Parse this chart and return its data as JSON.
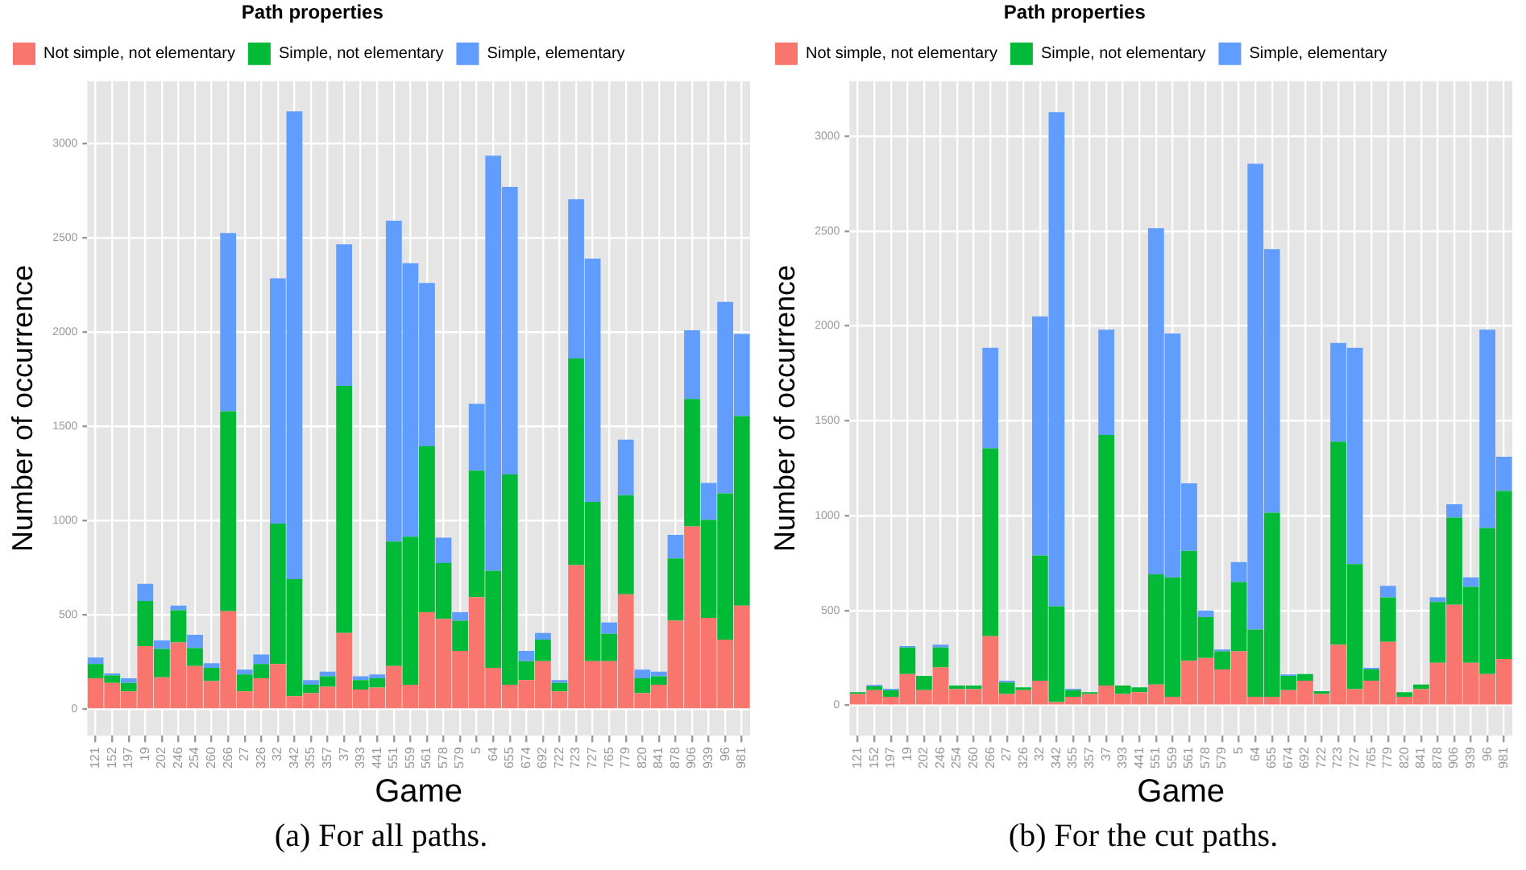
{
  "chart_data": [
    {
      "type": "bar",
      "stacked": true,
      "legend": "top",
      "legend_title": "Path properties",
      "grid": true,
      "xlabel": "Game",
      "ylabel": "Number of occurrence",
      "categories": [
        "121",
        "152",
        "197",
        "19",
        "202",
        "246",
        "254",
        "260",
        "266",
        "27",
        "326",
        "32",
        "342",
        "355",
        "357",
        "37",
        "393",
        "441",
        "551",
        "559",
        "561",
        "578",
        "579",
        "5",
        "64",
        "655",
        "674",
        "692",
        "722",
        "723",
        "727",
        "765",
        "779",
        "820",
        "841",
        "878",
        "906",
        "939",
        "96",
        "981"
      ],
      "ylim": [
        -140,
        3330
      ],
      "yticks": [
        0,
        500,
        1000,
        1500,
        2000,
        2500,
        3000
      ],
      "series": [
        {
          "name": "Not simple, not elementary",
          "color": "#f8766d",
          "values": [
            165,
            140,
            95,
            335,
            170,
            355,
            230,
            150,
            520,
            95,
            165,
            240,
            70,
            85,
            120,
            405,
            105,
            115,
            230,
            130,
            515,
            480,
            310,
            595,
            220,
            130,
            155,
            255,
            95,
            765,
            255,
            255,
            610,
            85,
            130,
            470,
            970,
            485,
            370,
            550
          ]
        },
        {
          "name": "Simple, not elementary",
          "color": "#00ba38",
          "values": [
            75,
            40,
            45,
            240,
            150,
            170,
            95,
            70,
            1060,
            90,
            75,
            745,
            620,
            45,
            55,
            1310,
            50,
            50,
            660,
            785,
            880,
            295,
            160,
            670,
            515,
            1115,
            100,
            115,
            45,
            1095,
            845,
            145,
            525,
            80,
            45,
            330,
            675,
            520,
            775,
            1005
          ]
        },
        {
          "name": "Simple, elementary",
          "color": "#619cff",
          "values": [
            35,
            10,
            25,
            90,
            45,
            25,
            70,
            25,
            945,
            25,
            50,
            1300,
            2480,
            25,
            25,
            750,
            20,
            20,
            1700,
            1450,
            865,
            135,
            45,
            355,
            2200,
            1525,
            55,
            35,
            15,
            845,
            1290,
            60,
            295,
            45,
            25,
            125,
            365,
            195,
            1015,
            435
          ]
        }
      ],
      "annotations": [
        "(a) For all paths."
      ]
    },
    {
      "type": "bar",
      "stacked": true,
      "legend": "top",
      "legend_title": "Path properties",
      "grid": true,
      "xlabel": "Game",
      "ylabel": "Number of occurrence",
      "categories": [
        "121",
        "152",
        "197",
        "19",
        "202",
        "246",
        "254",
        "260",
        "266",
        "27",
        "326",
        "32",
        "342",
        "355",
        "357",
        "37",
        "393",
        "441",
        "551",
        "559",
        "561",
        "578",
        "579",
        "5",
        "64",
        "655",
        "674",
        "692",
        "722",
        "723",
        "727",
        "765",
        "779",
        "820",
        "841",
        "878",
        "906",
        "939",
        "96",
        "981"
      ],
      "ylim": [
        -160,
        3290
      ],
      "yticks": [
        0,
        500,
        1000,
        1500,
        2000,
        2500,
        3000
      ],
      "series": [
        {
          "name": "Not simple, not elementary",
          "color": "#f8766d",
          "values": [
            60,
            80,
            45,
            165,
            80,
            200,
            85,
            85,
            365,
            60,
            80,
            130,
            17,
            45,
            60,
            105,
            60,
            70,
            110,
            45,
            235,
            250,
            190,
            285,
            45,
            45,
            80,
            130,
            60,
            320,
            85,
            130,
            335,
            45,
            85,
            225,
            530,
            225,
            165,
            245
          ]
        },
        {
          "name": "Simple, not elementary",
          "color": "#00ba38",
          "values": [
            10,
            20,
            35,
            140,
            75,
            105,
            20,
            20,
            990,
            60,
            15,
            660,
            505,
            35,
            10,
            1320,
            45,
            25,
            580,
            630,
            580,
            215,
            95,
            365,
            355,
            970,
            75,
            35,
            15,
            1070,
            660,
            60,
            235,
            25,
            25,
            320,
            460,
            400,
            770,
            885
          ]
        },
        {
          "name": "Simple, elementary",
          "color": "#619cff",
          "values": [
            0,
            8,
            8,
            8,
            0,
            15,
            0,
            0,
            530,
            10,
            0,
            1260,
            2605,
            8,
            0,
            555,
            0,
            0,
            1825,
            1285,
            355,
            35,
            10,
            105,
            2455,
            1390,
            8,
            0,
            0,
            520,
            1140,
            8,
            60,
            0,
            0,
            25,
            70,
            50,
            1045,
            180
          ]
        }
      ],
      "annotations": [
        "(b) For the cut paths."
      ]
    }
  ]
}
